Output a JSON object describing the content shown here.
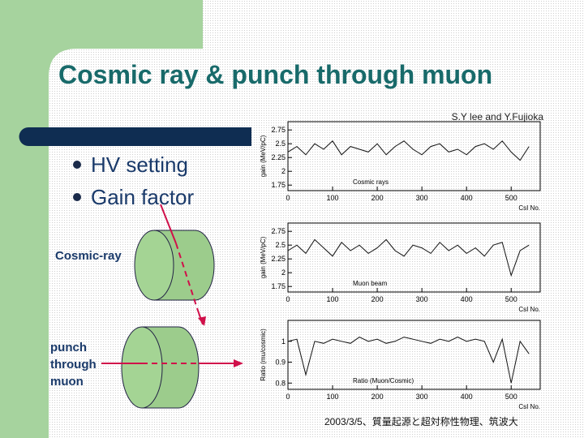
{
  "header": {
    "title": "Cosmic ray & punch through muon",
    "authors": "S.Y lee and Y.Fujioka"
  },
  "bullets": [
    "HV setting",
    "Gain factor"
  ],
  "diagram": {
    "cosmic_label": "Cosmic-ray",
    "muon_label": [
      "punch",
      "through",
      "muon"
    ]
  },
  "plots": [
    {
      "ylabel": "gain (MeV/pC)",
      "annotation": "Cosmic rays",
      "xlabel": "CsI No.",
      "x": [
        0,
        20,
        40,
        60,
        80,
        100,
        120,
        140,
        160,
        180,
        200,
        220,
        240,
        260,
        280,
        300,
        320,
        340,
        360,
        380,
        400,
        420,
        440,
        460,
        480,
        500,
        520,
        540
      ],
      "values": [
        2.35,
        2.45,
        2.3,
        2.5,
        2.4,
        2.55,
        2.3,
        2.45,
        2.4,
        2.35,
        2.5,
        2.3,
        2.45,
        2.55,
        2.4,
        2.3,
        2.45,
        2.5,
        2.35,
        2.4,
        2.3,
        2.45,
        2.5,
        2.4,
        2.55,
        2.35,
        2.2,
        2.45
      ],
      "xlim": [
        0,
        565
      ],
      "ylim": [
        1.65,
        2.9
      ],
      "xticks": [
        0,
        100,
        200,
        300,
        400,
        500
      ],
      "yticks": [
        1.75,
        2,
        2.25,
        2.5,
        2.75
      ]
    },
    {
      "ylabel": "gain (MeV/pC)",
      "annotation": "Muon beam",
      "xlabel": "CsI No.",
      "x": [
        0,
        20,
        40,
        60,
        80,
        100,
        120,
        140,
        160,
        180,
        200,
        220,
        240,
        260,
        280,
        300,
        320,
        340,
        360,
        380,
        400,
        420,
        440,
        460,
        480,
        500,
        520,
        540
      ],
      "values": [
        2.4,
        2.5,
        2.35,
        2.6,
        2.45,
        2.3,
        2.55,
        2.4,
        2.5,
        2.35,
        2.45,
        2.6,
        2.4,
        2.3,
        2.5,
        2.45,
        2.35,
        2.55,
        2.4,
        2.5,
        2.35,
        2.45,
        2.3,
        2.5,
        2.55,
        1.95,
        2.4,
        2.5
      ],
      "xlim": [
        0,
        565
      ],
      "ylim": [
        1.65,
        2.9
      ],
      "xticks": [
        0,
        100,
        200,
        300,
        400,
        500
      ],
      "yticks": [
        1.75,
        2,
        2.25,
        2.5,
        2.75
      ]
    },
    {
      "ylabel": "Ratio (mu/cosmic)",
      "annotation": "Ratio (Muon/Cosmic)",
      "xlabel": "CsI No.",
      "x": [
        0,
        20,
        40,
        60,
        80,
        100,
        120,
        140,
        160,
        180,
        200,
        220,
        240,
        260,
        280,
        300,
        320,
        340,
        360,
        380,
        400,
        420,
        440,
        460,
        480,
        500,
        520,
        540
      ],
      "values": [
        1.0,
        1.01,
        0.84,
        1.0,
        0.99,
        1.01,
        1.0,
        0.99,
        1.02,
        1.0,
        1.01,
        0.99,
        1.0,
        1.02,
        1.01,
        1.0,
        0.99,
        1.01,
        1.0,
        1.02,
        1.0,
        1.01,
        1.0,
        0.9,
        1.01,
        0.8,
        1.0,
        0.94
      ],
      "xlim": [
        0,
        565
      ],
      "ylim": [
        0.77,
        1.1
      ],
      "xticks": [
        0,
        100,
        200,
        300,
        400,
        500
      ],
      "yticks": [
        0.8,
        0.9,
        1
      ]
    }
  ],
  "footer": "2003/3/5、質量起源と超対称性物理、筑波大"
}
